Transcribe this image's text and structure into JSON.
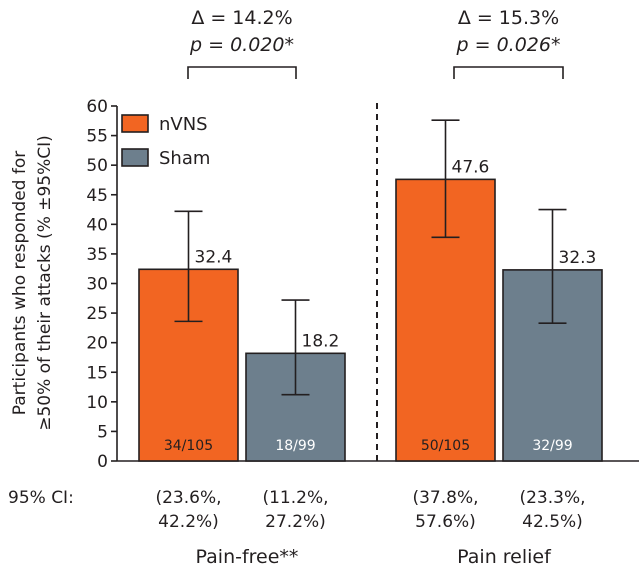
{
  "chart_data": {
    "type": "bar",
    "categories": [
      "Pain-free**",
      "Pain relief"
    ],
    "ylabel_line1": "Participants who responded for",
    "ylabel_line2": "≥50% of their attacks (% ±95%CI)",
    "ylim": [
      0,
      60
    ],
    "yticks": [
      0,
      5,
      10,
      15,
      20,
      25,
      30,
      35,
      40,
      45,
      50,
      55,
      60
    ],
    "legend_position": "top-left",
    "ci_row_label": "95% CI:",
    "series": [
      {
        "name": "nVNS",
        "color": "#f26522",
        "values": [
          32.4,
          47.6
        ],
        "value_labels": [
          "32.4",
          "47.6"
        ],
        "ci_low": [
          23.6,
          37.8
        ],
        "ci_high": [
          42.2,
          57.6
        ],
        "counts": [
          "34/105",
          "50/105"
        ],
        "ci_text_line1": [
          "(23.6%,",
          "(37.8%,"
        ],
        "ci_text_line2": [
          "42.2%)",
          "57.6%)"
        ]
      },
      {
        "name": "Sham",
        "color": "#6d7f8d",
        "values": [
          18.2,
          32.3
        ],
        "value_labels": [
          "18.2",
          "32.3"
        ],
        "ci_low": [
          11.2,
          23.3
        ],
        "ci_high": [
          27.2,
          42.5
        ],
        "counts": [
          "18/99",
          "32/99"
        ],
        "ci_text_line1": [
          "(11.2%,",
          "(23.3%,"
        ],
        "ci_text_line2": [
          "27.2%)",
          "42.5%)"
        ]
      }
    ],
    "annotations": [
      {
        "delta": "Δ = 14.2%",
        "p": "p = 0.020*"
      },
      {
        "delta": "Δ = 15.3%",
        "p": "p = 0.026*"
      }
    ]
  }
}
